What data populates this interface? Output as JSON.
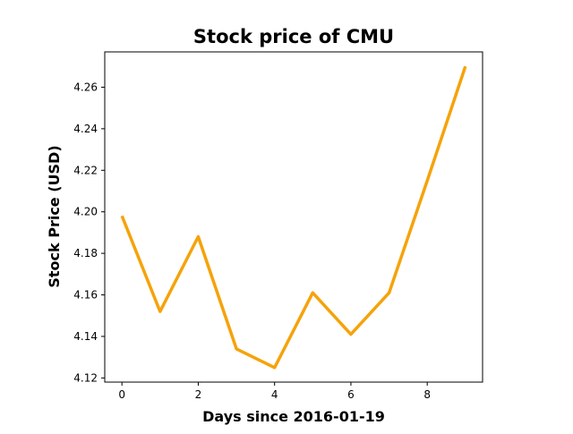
{
  "chart_data": {
    "type": "line",
    "title": "Stock price of CMU",
    "xlabel": "Days since 2016-01-19",
    "ylabel": "Stock Price (USD)",
    "x": [
      0,
      1,
      2,
      3,
      4,
      5,
      6,
      7,
      8,
      9
    ],
    "series": [
      {
        "name": "",
        "color": "#f5a30a",
        "values": [
          4.198,
          4.152,
          4.188,
          4.134,
          4.125,
          4.161,
          4.141,
          4.161,
          4.215,
          4.27
        ]
      }
    ],
    "xlim": [
      -0.45,
      9.45
    ],
    "ylim": [
      4.118,
      4.277
    ],
    "xticks": [
      0,
      2,
      4,
      6,
      8
    ],
    "xtick_labels": [
      "0",
      "2",
      "4",
      "6",
      "8"
    ],
    "yticks": [
      4.12,
      4.14,
      4.16,
      4.18,
      4.2,
      4.22,
      4.24,
      4.26
    ],
    "ytick_labels": [
      "4.12",
      "4.14",
      "4.16",
      "4.18",
      "4.20",
      "4.22",
      "4.24",
      "4.26"
    ],
    "grid": false,
    "legend": "none"
  }
}
